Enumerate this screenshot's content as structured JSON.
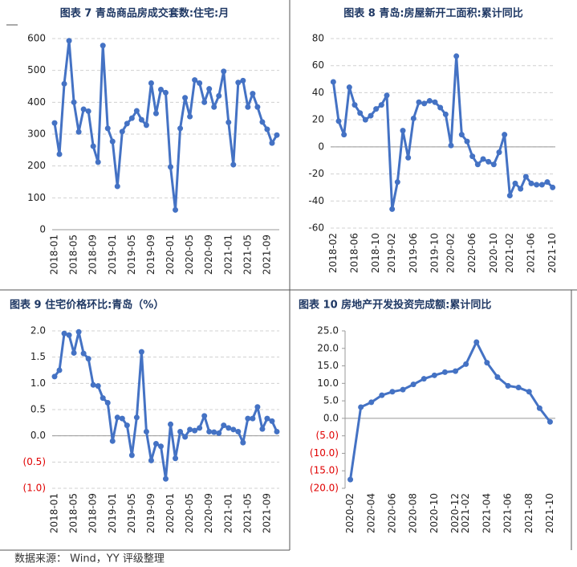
{
  "chart_data": [
    {
      "type": "line",
      "title": "图表 7 青岛商品房成交套数:住宅:月",
      "color": "#4472c4",
      "grid": true,
      "categories": [
        "2018-01",
        null,
        null,
        null,
        "2018-05",
        null,
        null,
        null,
        "2018-09",
        null,
        null,
        null,
        "2019-01",
        null,
        null,
        null,
        "2019-05",
        null,
        null,
        null,
        "2019-09",
        null,
        null,
        null,
        "2020-01",
        null,
        null,
        null,
        "2020-05",
        null,
        null,
        null,
        "2020-09",
        null,
        null,
        null,
        "2021-01",
        null,
        null,
        null,
        "2021-05",
        null,
        null,
        null,
        "2021-09",
        null,
        null
      ],
      "values": [
        335,
        237,
        458,
        593,
        400,
        307,
        378,
        372,
        262,
        212,
        578,
        318,
        277,
        136,
        308,
        333,
        350,
        373,
        345,
        328,
        460,
        365,
        440,
        430,
        197,
        62,
        318,
        414,
        355,
        470,
        460,
        400,
        442,
        385,
        420,
        497,
        337,
        204,
        462,
        468,
        385,
        427,
        385,
        338,
        315,
        272,
        297
      ],
      "ylim": [
        0,
        600
      ],
      "yticks": [
        0,
        100,
        200,
        300,
        400,
        500,
        600
      ]
    },
    {
      "type": "line",
      "title": "图表 8 青岛:房屋新开工面积:累计同比",
      "color": "#4472c4",
      "grid": true,
      "categories": [
        "2018-02",
        null,
        null,
        null,
        "2018-06",
        null,
        null,
        null,
        "2018-10",
        null,
        null,
        "2019-02",
        null,
        null,
        null,
        "2019-06",
        null,
        null,
        null,
        "2019-10",
        null,
        null,
        "2020-02",
        null,
        null,
        null,
        "2020-06",
        null,
        null,
        null,
        "2020-10",
        null,
        null,
        "2021-02",
        null,
        null,
        null,
        "2021-06",
        null,
        null,
        null,
        "2021-10"
      ],
      "values": [
        48,
        19,
        9,
        44,
        31,
        25,
        20,
        23,
        28,
        31,
        38,
        -46,
        -26,
        12,
        -8,
        21,
        33,
        32,
        34,
        33,
        29,
        24,
        1,
        67,
        9,
        4,
        -7,
        -13,
        -9,
        -11,
        -13,
        -4,
        9,
        -36,
        -27,
        -31,
        -22,
        -27,
        -28,
        -28,
        -26,
        -30
      ],
      "ylim": [
        -60,
        80
      ],
      "yticks": [
        80,
        60,
        40,
        20,
        0,
        -20,
        -40,
        -60
      ]
    },
    {
      "type": "line",
      "title": "图表 9 住宅价格环比:青岛（%）",
      "color": "#4472c4",
      "grid": true,
      "negative_tick_color": "#e00000",
      "categories": [
        "2018-01",
        null,
        null,
        null,
        "2018-05",
        null,
        null,
        null,
        "2018-09",
        null,
        null,
        null,
        "2019-01",
        null,
        null,
        null,
        "2019-05",
        null,
        null,
        null,
        "2019-09",
        null,
        null,
        null,
        "2020-01",
        null,
        null,
        null,
        "2020-05",
        null,
        null,
        null,
        "2020-09",
        null,
        null,
        null,
        "2021-01",
        null,
        null,
        null,
        "2021-05",
        null,
        null,
        null,
        "2021-09",
        null,
        null
      ],
      "values": [
        1.13,
        1.25,
        1.95,
        1.92,
        1.58,
        1.98,
        1.57,
        1.47,
        0.97,
        0.95,
        0.72,
        0.63,
        -0.1,
        0.35,
        0.33,
        0.2,
        -0.37,
        0.35,
        1.6,
        0.08,
        -0.47,
        -0.15,
        -0.2,
        -0.82,
        0.22,
        -0.43,
        0.08,
        -0.02,
        0.12,
        0.1,
        0.15,
        0.38,
        0.08,
        0.07,
        0.05,
        0.2,
        0.15,
        0.12,
        0.08,
        -0.13,
        0.33,
        0.33,
        0.55,
        0.13,
        0.33,
        0.28,
        0.08
      ],
      "ylim": [
        -1,
        2
      ],
      "yticks": [
        {
          "value": 2,
          "label": "2.0"
        },
        {
          "value": 1.5,
          "label": "1.5"
        },
        {
          "value": 1,
          "label": "1.0"
        },
        {
          "value": 0.5,
          "label": "0.5"
        },
        {
          "value": 0,
          "label": "0.0"
        },
        {
          "value": -0.5,
          "label": "(0.5)"
        },
        {
          "value": -1,
          "label": "(1.0)"
        }
      ]
    },
    {
      "type": "line",
      "title": "图表 10 房地产开发投资完成额:累计同比",
      "color": "#4472c4",
      "grid": false,
      "negative_tick_color": "#e00000",
      "categories": [
        "2020-02",
        null,
        "2020-04",
        null,
        "2020-06",
        null,
        "2020-08",
        null,
        "2020-10",
        null,
        "2020-12",
        "2021-02",
        null,
        "2021-04",
        null,
        "2021-06",
        null,
        "2021-08",
        null,
        "2021-10"
      ],
      "values": [
        -17.5,
        3.2,
        4.6,
        6.6,
        7.6,
        8.2,
        9.7,
        11.3,
        12.3,
        13.2,
        13.5,
        15.5,
        21.8,
        15.9,
        11.8,
        9.3,
        8.8,
        7.6,
        2.9,
        -1.0
      ],
      "ylim": [
        -20,
        25
      ],
      "yticks": [
        {
          "value": 25,
          "label": "25.0"
        },
        {
          "value": 20,
          "label": "20.0"
        },
        {
          "value": 15,
          "label": "15.0"
        },
        {
          "value": 10,
          "label": "10.0"
        },
        {
          "value": 5,
          "label": "5.0"
        },
        {
          "value": 0,
          "label": "0.0"
        },
        {
          "value": -5,
          "label": "(5.0)"
        },
        {
          "value": -10,
          "label": "(10.0)"
        },
        {
          "value": -15,
          "label": "(15.0)"
        },
        {
          "value": -20,
          "label": "(20.0)"
        }
      ]
    }
  ],
  "source": "数据来源： Wind，YY 评级整理"
}
